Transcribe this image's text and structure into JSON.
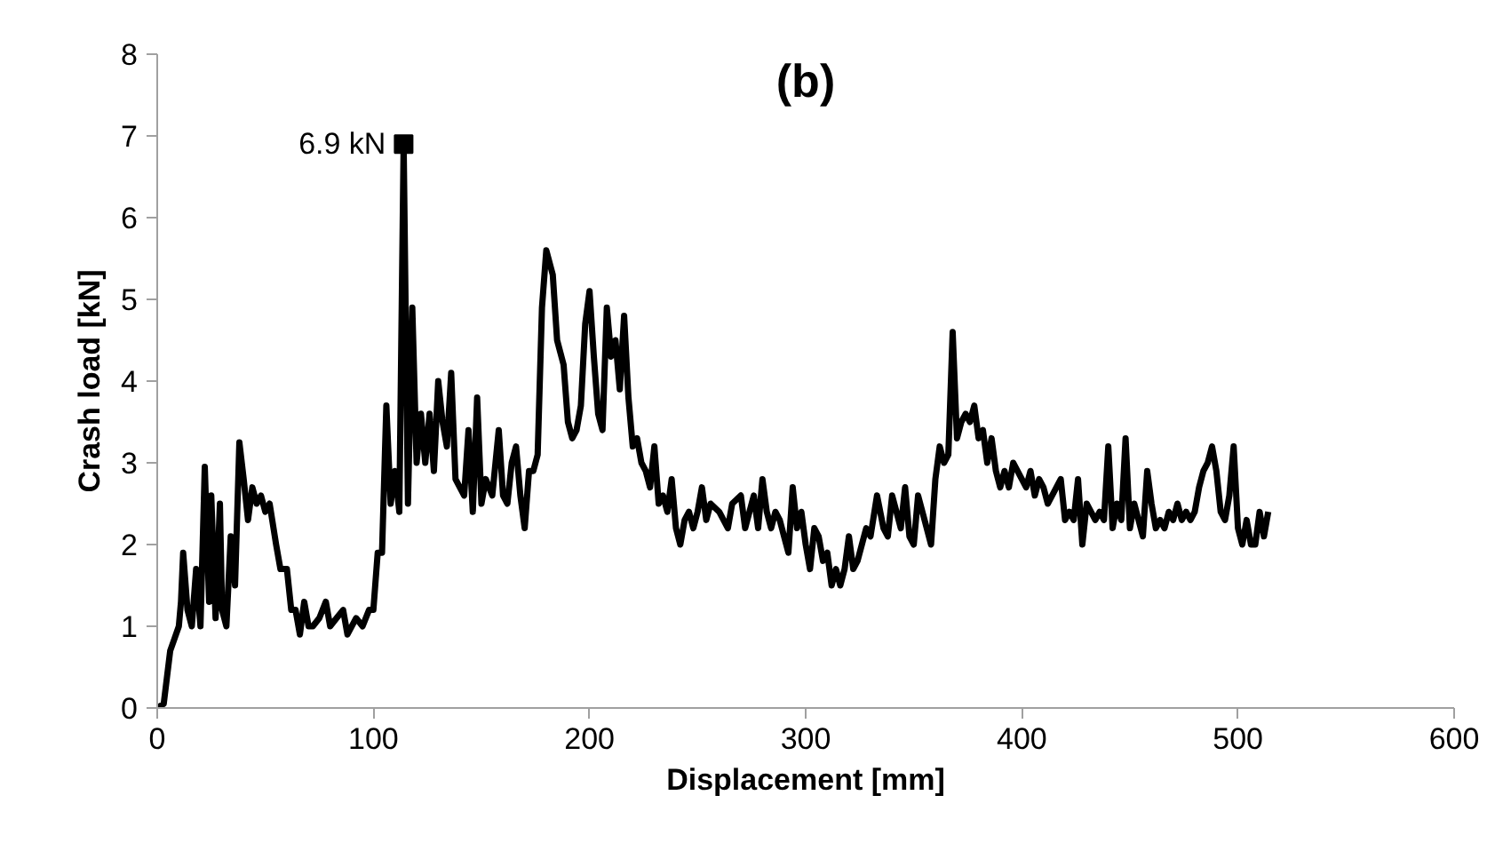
{
  "chart_data": {
    "type": "line",
    "title": "(b)",
    "xlabel": "Displacement [mm]",
    "ylabel": "Crash load [kN]",
    "xlim": [
      0,
      600
    ],
    "xticks": [
      0,
      100,
      200,
      300,
      400,
      500,
      600
    ],
    "ylim": [
      0,
      8
    ],
    "yticks": [
      0,
      1,
      2,
      3,
      4,
      5,
      6,
      7,
      8
    ],
    "grid": false,
    "marker": "none",
    "line_style": "solid",
    "annotations": [
      {
        "text": "6.9 kN",
        "x": 114,
        "y": 6.9
      }
    ],
    "series": [
      {
        "color": "#000000",
        "x": [
          0,
          3,
          6,
          8,
          10,
          11,
          12,
          14,
          16,
          18,
          20,
          22,
          24,
          25,
          27,
          29,
          30,
          32,
          34,
          36,
          38,
          40,
          42,
          44,
          46,
          48,
          50,
          52,
          55,
          57,
          60,
          62,
          64,
          66,
          68,
          70,
          72,
          75,
          78,
          80,
          83,
          86,
          88,
          92,
          95,
          98,
          100,
          102,
          104,
          106,
          108,
          110,
          112,
          114,
          116,
          118,
          120,
          122,
          124,
          126,
          128,
          130,
          132,
          134,
          136,
          138,
          140,
          142,
          144,
          146,
          148,
          150,
          152,
          155,
          158,
          160,
          162,
          164,
          166,
          168,
          170,
          172,
          174,
          176,
          178,
          180,
          183,
          185,
          188,
          190,
          192,
          194,
          196,
          198,
          200,
          202,
          204,
          206,
          208,
          210,
          212,
          214,
          216,
          218,
          220,
          222,
          224,
          226,
          228,
          230,
          232,
          234,
          236,
          238,
          240,
          242,
          244,
          246,
          248,
          250,
          252,
          254,
          256,
          260,
          264,
          266,
          270,
          272,
          274,
          276,
          278,
          280,
          282,
          284,
          286,
          288,
          290,
          292,
          294,
          296,
          298,
          300,
          302,
          304,
          306,
          308,
          310,
          312,
          314,
          316,
          318,
          320,
          322,
          324,
          326,
          328,
          330,
          333,
          336,
          338,
          340,
          342,
          344,
          346,
          348,
          350,
          352,
          355,
          358,
          360,
          362,
          364,
          366,
          368,
          370,
          372,
          374,
          376,
          378,
          380,
          382,
          384,
          386,
          388,
          390,
          392,
          394,
          396,
          398,
          400,
          402,
          404,
          406,
          408,
          410,
          412,
          414,
          416,
          418,
          420,
          422,
          424,
          426,
          428,
          430,
          432,
          434,
          436,
          438,
          440,
          442,
          444,
          446,
          448,
          450,
          452,
          454,
          456,
          458,
          460,
          462,
          464,
          466,
          468,
          470,
          472,
          474,
          476,
          478,
          480,
          482,
          484,
          486,
          488,
          490,
          492,
          494,
          496,
          498,
          500,
          502,
          504,
          506,
          508,
          510,
          512,
          514
        ],
        "values": [
          0,
          0.05,
          0.7,
          0.85,
          1.0,
          1.3,
          1.9,
          1.2,
          1.0,
          1.7,
          1.0,
          2.95,
          1.3,
          2.6,
          1.1,
          2.5,
          1.2,
          1.0,
          2.1,
          1.5,
          3.25,
          2.8,
          2.3,
          2.7,
          2.5,
          2.6,
          2.4,
          2.5,
          2.0,
          1.7,
          1.7,
          1.2,
          1.2,
          0.9,
          1.3,
          1.0,
          1.0,
          1.1,
          1.3,
          1.0,
          1.1,
          1.2,
          0.9,
          1.1,
          1.0,
          1.2,
          1.2,
          1.9,
          1.9,
          3.7,
          2.5,
          2.9,
          2.4,
          6.9,
          2.5,
          4.9,
          3.0,
          3.6,
          3.0,
          3.6,
          2.9,
          4.0,
          3.5,
          3.2,
          4.1,
          2.8,
          2.7,
          2.6,
          3.4,
          2.4,
          3.8,
          2.5,
          2.8,
          2.6,
          3.4,
          2.6,
          2.5,
          3.0,
          3.2,
          2.6,
          2.2,
          2.9,
          2.9,
          3.1,
          4.9,
          5.6,
          5.3,
          4.5,
          4.2,
          3.5,
          3.3,
          3.4,
          3.7,
          4.7,
          5.1,
          4.3,
          3.6,
          3.4,
          4.9,
          4.3,
          4.5,
          3.9,
          4.8,
          3.8,
          3.2,
          3.3,
          3.0,
          2.9,
          2.7,
          3.2,
          2.5,
          2.6,
          2.4,
          2.8,
          2.2,
          2.0,
          2.3,
          2.4,
          2.2,
          2.4,
          2.7,
          2.3,
          2.5,
          2.4,
          2.2,
          2.5,
          2.6,
          2.2,
          2.4,
          2.6,
          2.2,
          2.8,
          2.4,
          2.2,
          2.4,
          2.3,
          2.1,
          1.9,
          2.7,
          2.2,
          2.4,
          2.0,
          1.7,
          2.2,
          2.1,
          1.8,
          1.9,
          1.5,
          1.7,
          1.5,
          1.7,
          2.1,
          1.7,
          1.8,
          2.0,
          2.2,
          2.1,
          2.6,
          2.2,
          2.1,
          2.6,
          2.4,
          2.2,
          2.7,
          2.1,
          2.0,
          2.6,
          2.3,
          2.0,
          2.8,
          3.2,
          3.0,
          3.1,
          4.6,
          3.3,
          3.5,
          3.6,
          3.5,
          3.7,
          3.3,
          3.4,
          3.0,
          3.3,
          2.9,
          2.7,
          2.9,
          2.7,
          3.0,
          2.9,
          2.8,
          2.7,
          2.9,
          2.6,
          2.8,
          2.7,
          2.5,
          2.6,
          2.7,
          2.8,
          2.3,
          2.4,
          2.3,
          2.8,
          2.0,
          2.5,
          2.4,
          2.3,
          2.4,
          2.3,
          3.2,
          2.2,
          2.5,
          2.3,
          3.3,
          2.2,
          2.5,
          2.3,
          2.1,
          2.9,
          2.5,
          2.2,
          2.3,
          2.2,
          2.4,
          2.3,
          2.5,
          2.3,
          2.4,
          2.3,
          2.4,
          2.7,
          2.9,
          3.0,
          3.2,
          2.9,
          2.4,
          2.3,
          2.6,
          3.2,
          2.2,
          2.0,
          2.3,
          2.0,
          2.0,
          2.4,
          2.1,
          2.4
        ]
      }
    ]
  }
}
